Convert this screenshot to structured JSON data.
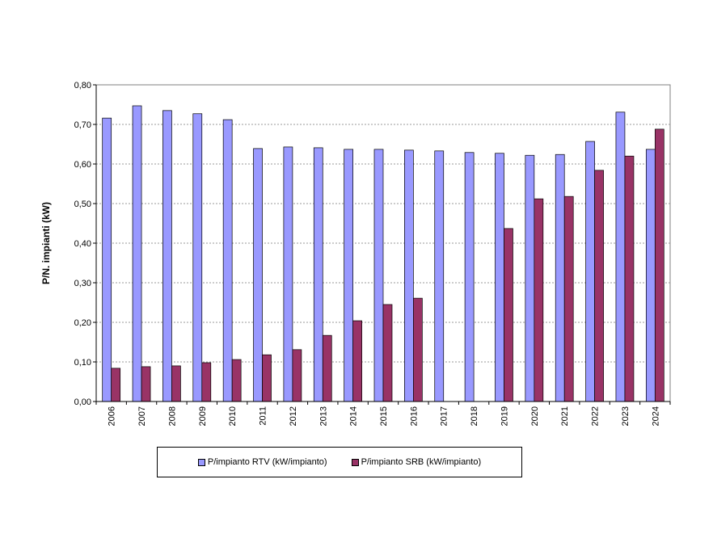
{
  "chart_data": {
    "type": "bar",
    "title": "",
    "xlabel": "",
    "ylabel": "P/N. impianti (kW)",
    "ylim": [
      0,
      0.8
    ],
    "yticks": [
      "0,00",
      "0,10",
      "0,20",
      "0,30",
      "0,40",
      "0,50",
      "0,60",
      "0,70",
      "0,80"
    ],
    "grid": true,
    "legend": "bottom",
    "categories": [
      "2006",
      "2007",
      "2008",
      "2009",
      "2010",
      "2011",
      "2012",
      "2013",
      "2014",
      "2015",
      "2016",
      "2017",
      "2018",
      "2019",
      "2020",
      "2021",
      "2022",
      "2023",
      "2024"
    ],
    "series": [
      {
        "name": "P/impianto RTV (kW/impianto)",
        "color": "#9999FF",
        "values": [
          0.716,
          0.747,
          0.735,
          0.727,
          0.712,
          0.639,
          0.643,
          0.641,
          0.637,
          0.637,
          0.635,
          0.633,
          0.629,
          0.627,
          0.622,
          0.624,
          0.657,
          0.731,
          0.637
        ]
      },
      {
        "name": "P/impianto SRB (kW/impianto)",
        "color": "#993366",
        "values": [
          0.084,
          0.088,
          0.09,
          0.098,
          0.106,
          0.118,
          0.131,
          0.167,
          0.204,
          0.245,
          0.261,
          null,
          null,
          0.437,
          0.512,
          0.518,
          0.584,
          0.62,
          0.688
        ]
      }
    ]
  }
}
